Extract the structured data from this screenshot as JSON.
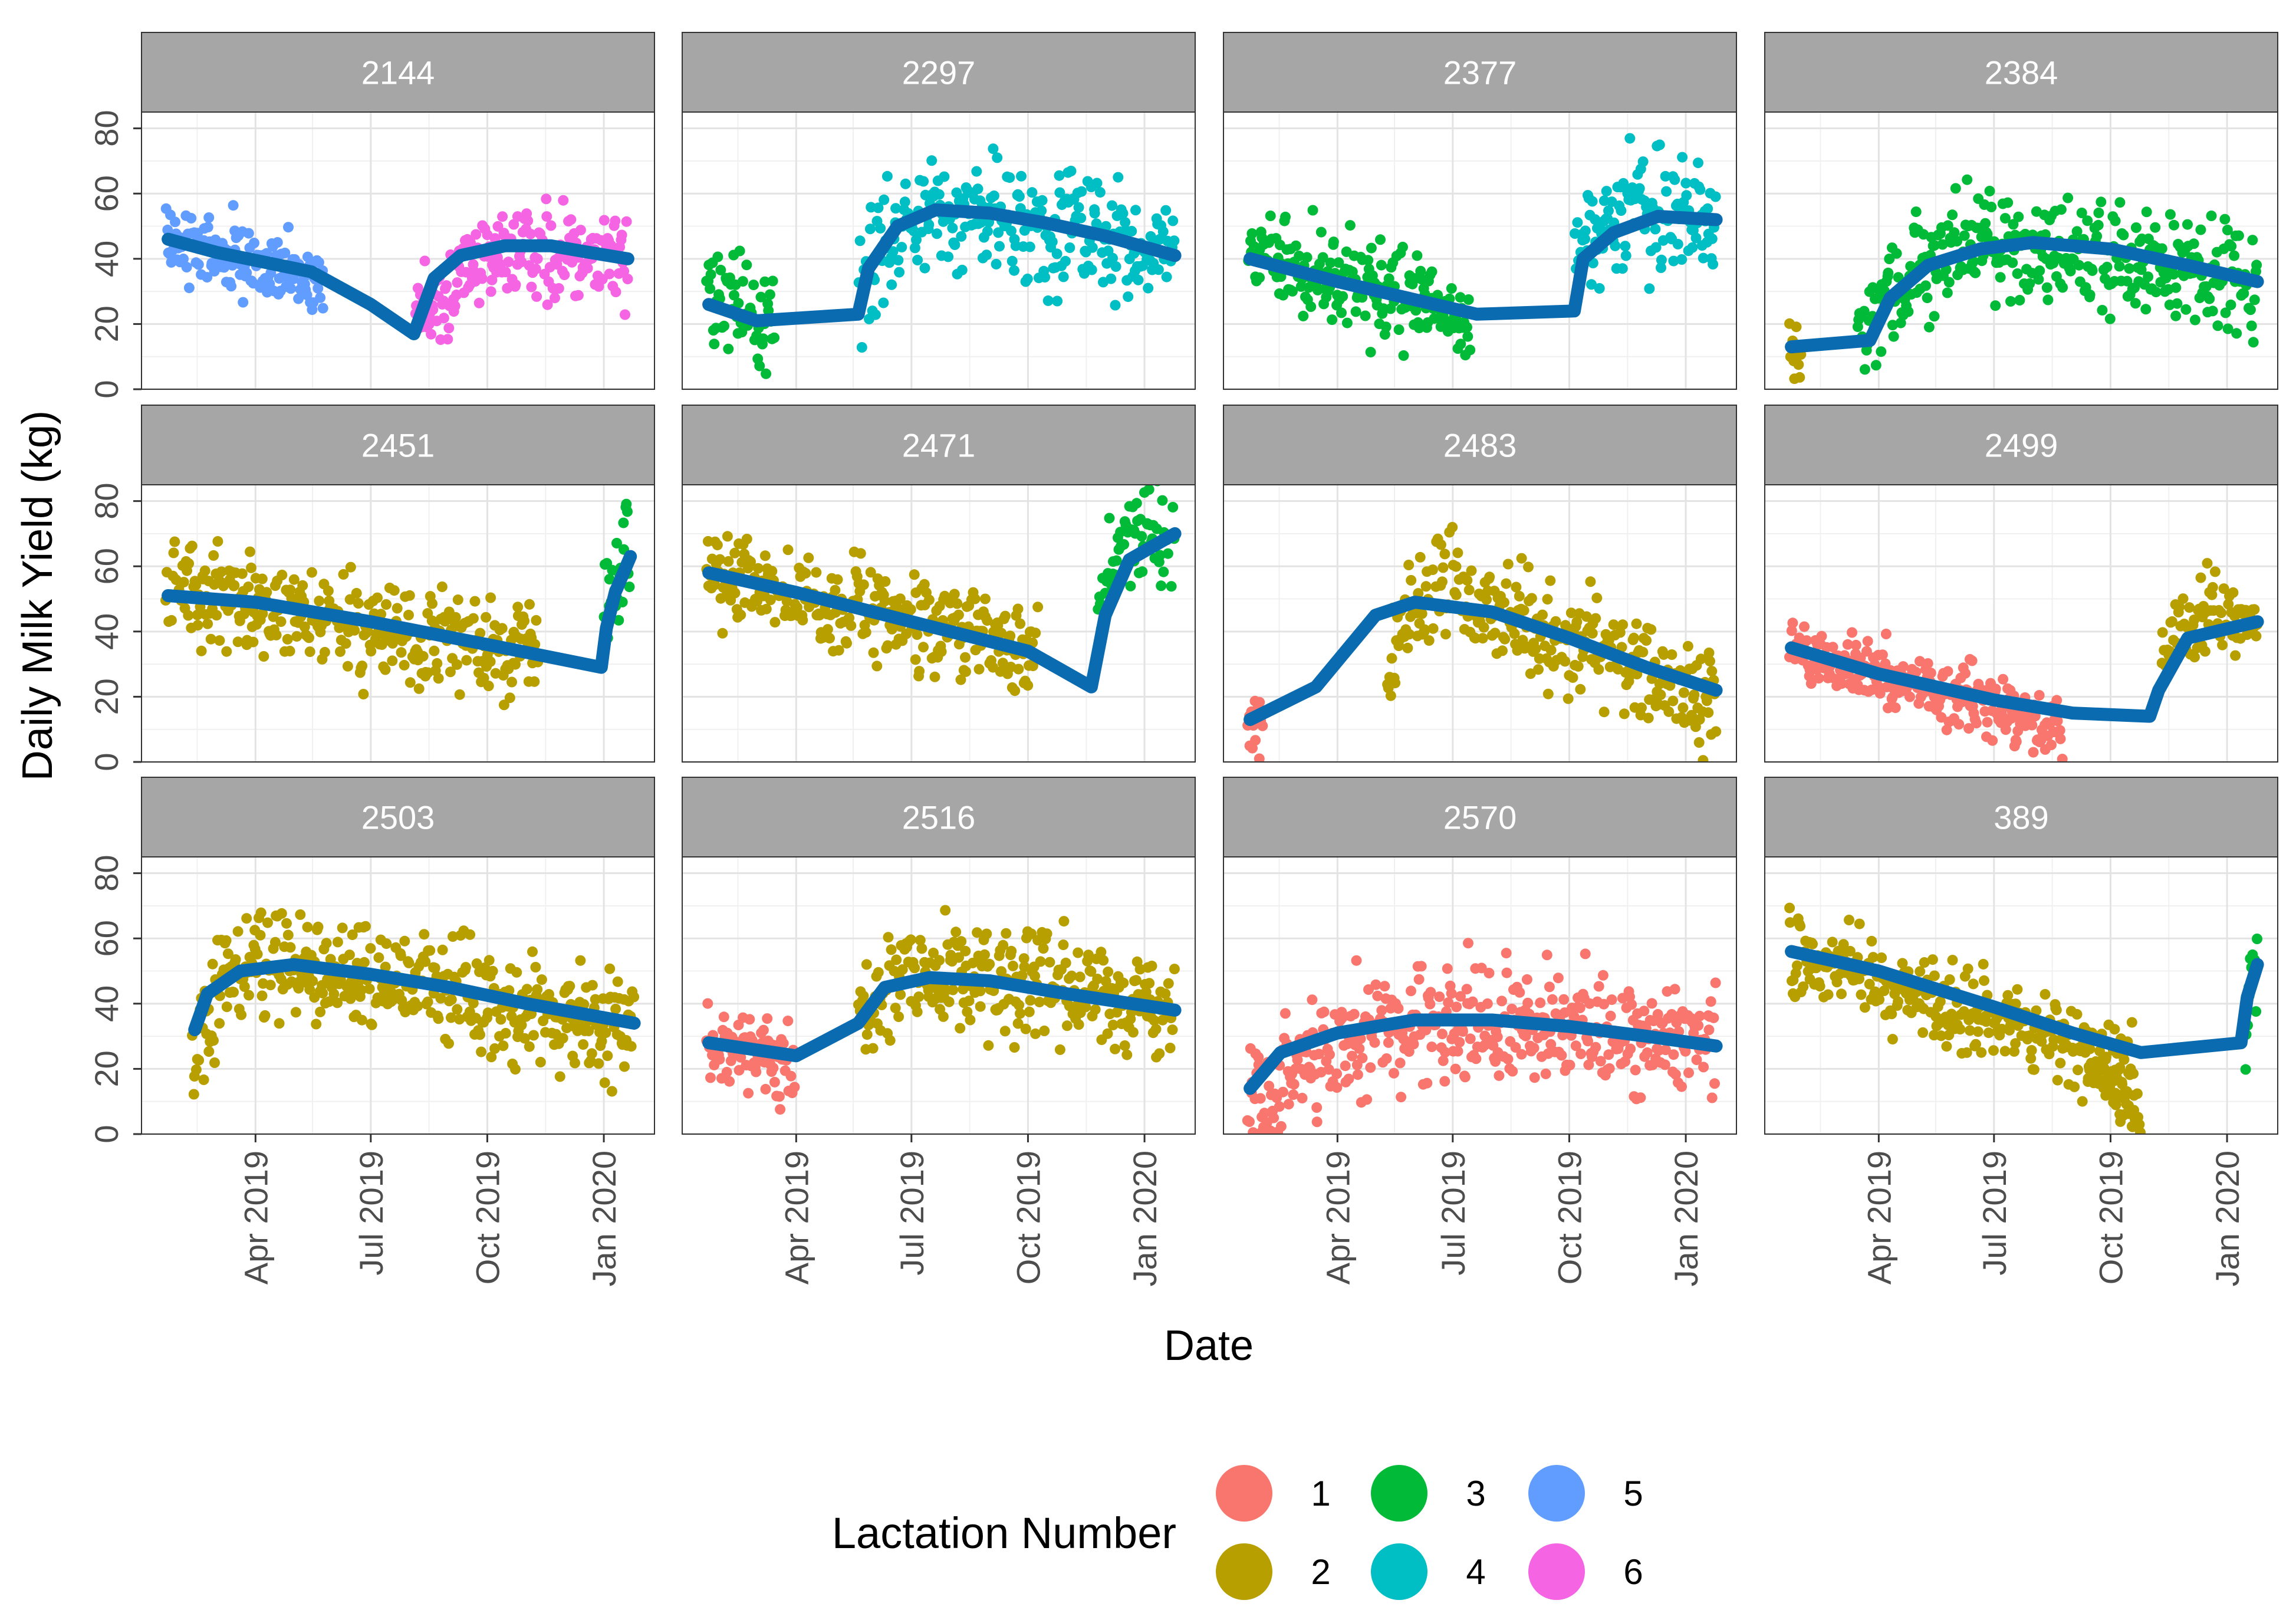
{
  "chart_data": {
    "type": "scatter",
    "layout": "facet-grid 3x4 (facet_wrap by cow id) with fitted curve overlay",
    "xlabel": "Date",
    "ylabel": "Daily Milk Yield (kg)",
    "x_range": [
      "2019-01-01",
      "2020-02-10"
    ],
    "ylim": [
      0,
      85
    ],
    "y_ticks": [
      0,
      20,
      40,
      60,
      80
    ],
    "x_ticks": [
      {
        "date": "2019-04-01",
        "label": "Apr 2019"
      },
      {
        "date": "2019-07-01",
        "label": "Jul 2019"
      },
      {
        "date": "2019-10-01",
        "label": "Oct 2019"
      },
      {
        "date": "2020-01-01",
        "label": "Jan 2020"
      }
    ],
    "grid": true,
    "fit_line_color": "#0a6bb0",
    "legend": {
      "title": "Lactation Number",
      "position": "bottom",
      "entries": [
        {
          "label": "1",
          "color": "#f8766d"
        },
        {
          "label": "2",
          "color": "#b79f00"
        },
        {
          "label": "3",
          "color": "#00ba38"
        },
        {
          "label": "4",
          "color": "#00bfc4"
        },
        {
          "label": "5",
          "color": "#619cff"
        },
        {
          "label": "6",
          "color": "#f564e3"
        }
      ]
    },
    "panels": [
      {
        "id": "2144",
        "segments": [
          {
            "lactation": "5",
            "start": "2019-01-20",
            "end": "2019-05-25",
            "v0": 46,
            "v1": 34,
            "noise": 6
          },
          {
            "lactation": "6",
            "start": "2019-08-05",
            "end": "2020-01-20",
            "peak": 44,
            "peak_days": 70,
            "v0": 18,
            "v1": 40,
            "noise": 7
          }
        ],
        "fit": [
          [
            "2019-01-22",
            46
          ],
          [
            "2019-03-01",
            42
          ],
          [
            "2019-05-15",
            36
          ],
          [
            "2019-07-01",
            26
          ],
          [
            "2019-08-04",
            17
          ],
          [
            "2019-08-20",
            34
          ],
          [
            "2019-09-10",
            41
          ],
          [
            "2019-10-15",
            44
          ],
          [
            "2019-11-20",
            44
          ],
          [
            "2019-12-20",
            42
          ],
          [
            "2020-01-20",
            40
          ]
        ]
      },
      {
        "id": "2297",
        "segments": [
          {
            "lactation": "3",
            "start": "2019-01-20",
            "end": "2019-03-15",
            "v0": 28,
            "v1": 20,
            "noise": 7
          },
          {
            "lactation": "4",
            "start": "2019-05-20",
            "end": "2020-01-25",
            "peak": 56,
            "peak_days": 60,
            "v0": 30,
            "v1": 42,
            "noise": 8
          }
        ],
        "fit": [
          [
            "2019-01-22",
            26
          ],
          [
            "2019-03-01",
            21
          ],
          [
            "2019-05-20",
            23
          ],
          [
            "2019-05-28",
            37
          ],
          [
            "2019-06-20",
            50
          ],
          [
            "2019-07-20",
            55
          ],
          [
            "2019-09-01",
            54
          ],
          [
            "2019-10-15",
            51
          ],
          [
            "2019-12-01",
            47
          ],
          [
            "2020-01-25",
            41
          ]
        ]
      },
      {
        "id": "2377",
        "segments": [
          {
            "lactation": "3",
            "start": "2019-01-20",
            "end": "2019-07-15",
            "v0": 42,
            "v1": 22,
            "noise": 7
          },
          {
            "lactation": "4",
            "start": "2019-10-05",
            "end": "2020-01-25",
            "peak": 54,
            "peak_days": 60,
            "v0": 40,
            "v1": 50,
            "noise": 9
          }
        ],
        "fit": [
          [
            "2019-01-22",
            40
          ],
          [
            "2019-04-01",
            33
          ],
          [
            "2019-07-20",
            23
          ],
          [
            "2019-10-05",
            24
          ],
          [
            "2019-10-12",
            40
          ],
          [
            "2019-11-05",
            48
          ],
          [
            "2019-12-10",
            53
          ],
          [
            "2020-01-25",
            52
          ]
        ]
      },
      {
        "id": "2384",
        "segments": [
          {
            "lactation": "2",
            "start": "2019-01-20",
            "end": "2019-01-30",
            "v0": 18,
            "v1": 8,
            "noise": 5
          },
          {
            "lactation": "3",
            "start": "2019-03-15",
            "end": "2020-01-25",
            "peak": 45,
            "peak_days": 100,
            "v0": 18,
            "v1": 33,
            "noise": 8
          }
        ],
        "fit": [
          [
            "2019-01-22",
            13
          ],
          [
            "2019-03-25",
            15
          ],
          [
            "2019-04-10",
            28
          ],
          [
            "2019-05-10",
            38
          ],
          [
            "2019-06-20",
            43
          ],
          [
            "2019-08-01",
            45
          ],
          [
            "2019-10-01",
            43
          ],
          [
            "2019-12-01",
            38
          ],
          [
            "2020-01-25",
            33
          ]
        ]
      },
      {
        "id": "2451",
        "segments": [
          {
            "lactation": "2",
            "start": "2019-01-20",
            "end": "2019-11-10",
            "v0": 53,
            "v1": 32,
            "noise": 7
          },
          {
            "lactation": "3",
            "start": "2020-01-01",
            "end": "2020-01-22",
            "peak": 65,
            "peak_days": 20,
            "v0": 45,
            "v1": 60,
            "noise": 10
          }
        ],
        "fit": [
          [
            "2019-01-22",
            51
          ],
          [
            "2019-04-01",
            49
          ],
          [
            "2019-07-01",
            43
          ],
          [
            "2019-10-01",
            36
          ],
          [
            "2019-12-30",
            29
          ],
          [
            "2020-01-03",
            41
          ],
          [
            "2020-01-10",
            52
          ],
          [
            "2020-01-22",
            63
          ]
        ]
      },
      {
        "id": "2471",
        "segments": [
          {
            "lactation": "2",
            "start": "2019-01-20",
            "end": "2019-10-10",
            "v0": 58,
            "v1": 33,
            "noise": 7
          },
          {
            "lactation": "3",
            "start": "2019-11-25",
            "end": "2020-01-25",
            "peak": 72,
            "peak_days": 40,
            "v0": 50,
            "v1": 68,
            "noise": 8
          }
        ],
        "fit": [
          [
            "2019-01-22",
            58
          ],
          [
            "2019-04-01",
            52
          ],
          [
            "2019-07-01",
            43
          ],
          [
            "2019-10-01",
            34
          ],
          [
            "2019-11-20",
            23
          ],
          [
            "2019-12-01",
            45
          ],
          [
            "2019-12-20",
            62
          ],
          [
            "2020-01-25",
            70
          ]
        ]
      },
      {
        "id": "2483",
        "segments": [
          {
            "lactation": "1",
            "start": "2019-01-20",
            "end": "2019-02-01",
            "v0": 15,
            "v1": 12,
            "noise": 5
          },
          {
            "lactation": "2",
            "start": "2019-05-10",
            "end": "2020-01-25",
            "peak": 52,
            "peak_days": 40,
            "v0": 30,
            "v1": 20,
            "noise": 8
          }
        ],
        "fit": [
          [
            "2019-01-22",
            13
          ],
          [
            "2019-03-15",
            23
          ],
          [
            "2019-05-01",
            45
          ],
          [
            "2019-06-01",
            49
          ],
          [
            "2019-08-01",
            46
          ],
          [
            "2019-10-01",
            38
          ],
          [
            "2019-12-01",
            29
          ],
          [
            "2020-01-25",
            22
          ]
        ]
      },
      {
        "id": "2499",
        "segments": [
          {
            "lactation": "1",
            "start": "2019-01-20",
            "end": "2019-08-25",
            "v0": 35,
            "v1": 10,
            "noise": 5
          },
          {
            "lactation": "2",
            "start": "2019-11-10",
            "end": "2020-01-25",
            "peak": 46,
            "peak_days": 45,
            "v0": 30,
            "v1": 42,
            "noise": 6
          }
        ],
        "fit": [
          [
            "2019-01-22",
            35
          ],
          [
            "2019-04-01",
            27
          ],
          [
            "2019-07-01",
            19
          ],
          [
            "2019-09-01",
            15
          ],
          [
            "2019-11-01",
            14
          ],
          [
            "2019-11-08",
            22
          ],
          [
            "2019-12-01",
            38
          ],
          [
            "2020-01-25",
            43
          ]
        ]
      },
      {
        "id": "2503",
        "segments": [
          {
            "lactation": "2",
            "start": "2019-02-10",
            "end": "2020-01-25",
            "peak": 55,
            "peak_days": 50,
            "v0": 25,
            "v1": 33,
            "noise": 8
          }
        ],
        "fit": [
          [
            "2019-02-12",
            32
          ],
          [
            "2019-02-22",
            43
          ],
          [
            "2019-03-20",
            50
          ],
          [
            "2019-05-01",
            52
          ],
          [
            "2019-07-01",
            49
          ],
          [
            "2019-09-01",
            45
          ],
          [
            "2019-11-01",
            40
          ],
          [
            "2020-01-25",
            34
          ]
        ]
      },
      {
        "id": "2516",
        "segments": [
          {
            "lactation": "1",
            "start": "2019-01-20",
            "end": "2019-03-31",
            "v0": 28,
            "v1": 22,
            "noise": 6
          },
          {
            "lactation": "2",
            "start": "2019-05-20",
            "end": "2020-01-25",
            "peak": 50,
            "peak_days": 50,
            "v0": 35,
            "v1": 38,
            "noise": 8
          }
        ],
        "fit": [
          [
            "2019-01-22",
            28
          ],
          [
            "2019-04-01",
            24
          ],
          [
            "2019-05-20",
            34
          ],
          [
            "2019-06-10",
            45
          ],
          [
            "2019-07-15",
            48
          ],
          [
            "2019-09-01",
            47
          ],
          [
            "2019-11-01",
            43
          ],
          [
            "2020-01-25",
            38
          ]
        ]
      },
      {
        "id": "2570",
        "segments": [
          {
            "lactation": "1",
            "start": "2019-01-20",
            "end": "2020-01-25",
            "peak": 35,
            "peak_days": 150,
            "v0": 10,
            "v1": 28,
            "noise": 9
          }
        ],
        "fit": [
          [
            "2019-01-22",
            14
          ],
          [
            "2019-02-15",
            25
          ],
          [
            "2019-04-01",
            31
          ],
          [
            "2019-06-01",
            35
          ],
          [
            "2019-08-01",
            35
          ],
          [
            "2019-10-01",
            33
          ],
          [
            "2019-12-01",
            30
          ],
          [
            "2020-01-25",
            27
          ]
        ]
      },
      {
        "id": "389",
        "segments": [
          {
            "lactation": "2",
            "start": "2019-01-20",
            "end": "2019-10-20",
            "v0": 57,
            "v1": 20,
            "noise": 6
          },
          {
            "lactation": "2",
            "start": "2019-09-10",
            "end": "2019-10-25",
            "v0": 25,
            "v1": 2,
            "noise": 4
          },
          {
            "lactation": "3",
            "start": "2020-01-15",
            "end": "2020-01-25",
            "peak": 55,
            "peak_days": 8,
            "v0": 20,
            "v1": 52,
            "noise": 6
          }
        ],
        "fit": [
          [
            "2019-01-22",
            56
          ],
          [
            "2019-04-01",
            50
          ],
          [
            "2019-07-01",
            39
          ],
          [
            "2019-09-01",
            31
          ],
          [
            "2019-10-25",
            25
          ],
          [
            "2020-01-12",
            28
          ],
          [
            "2020-01-17",
            42
          ],
          [
            "2020-01-25",
            52
          ]
        ]
      }
    ]
  }
}
